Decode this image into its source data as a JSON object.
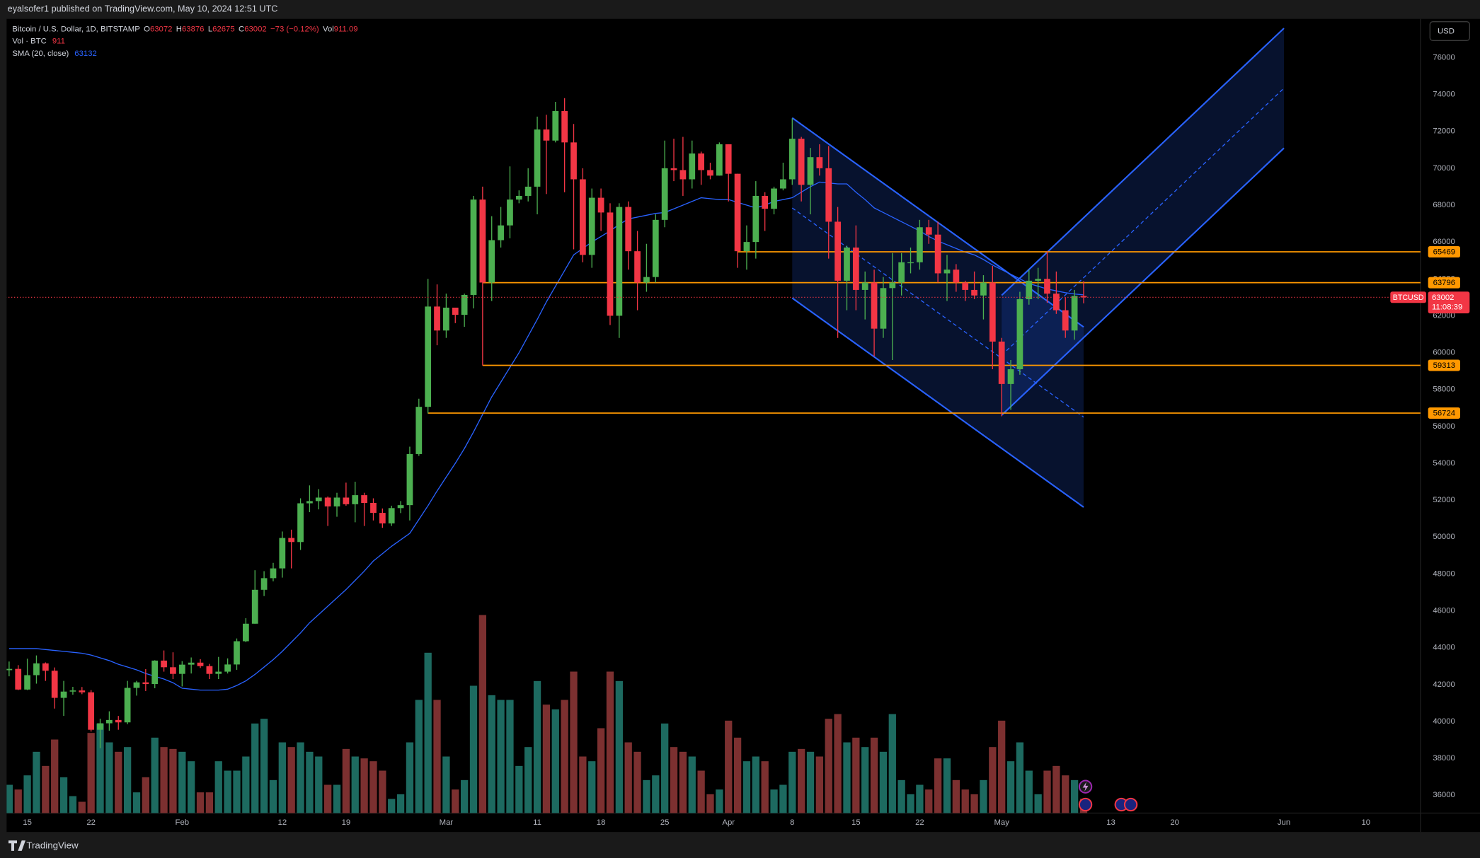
{
  "header": {
    "publisher": "eyalsofer1 published on TradingView.com, May 10, 2024 12:51 UTC",
    "brand": "TradingView",
    "currency": "USD"
  },
  "chart_data": {
    "type": "candlestick",
    "title": "Bitcoin / U.S. Dollar, 1D, BITSTAMP",
    "ohlc_labels": [
      "O",
      "H",
      "L",
      "C",
      "Vol"
    ],
    "change": "−73 (−0.12%)",
    "x": [
      "2024-01-13",
      "2024-01-14",
      "2024-01-15",
      "2024-01-16",
      "2024-01-17",
      "2024-01-18",
      "2024-01-19",
      "2024-01-20",
      "2024-01-21",
      "2024-01-22",
      "2024-01-23",
      "2024-01-24",
      "2024-01-25",
      "2024-01-26",
      "2024-01-27",
      "2024-01-28",
      "2024-01-29",
      "2024-01-30",
      "2024-01-31",
      "2024-02-01",
      "2024-02-02",
      "2024-02-03",
      "2024-02-04",
      "2024-02-05",
      "2024-02-06",
      "2024-02-07",
      "2024-02-08",
      "2024-02-09",
      "2024-02-10",
      "2024-02-11",
      "2024-02-12",
      "2024-02-13",
      "2024-02-14",
      "2024-02-15",
      "2024-02-16",
      "2024-02-17",
      "2024-02-18",
      "2024-02-19",
      "2024-02-20",
      "2024-02-21",
      "2024-02-22",
      "2024-02-23",
      "2024-02-24",
      "2024-02-25",
      "2024-02-26",
      "2024-02-27",
      "2024-02-28",
      "2024-02-29",
      "2024-03-01",
      "2024-03-02",
      "2024-03-03",
      "2024-03-04",
      "2024-03-05",
      "2024-03-06",
      "2024-03-07",
      "2024-03-08",
      "2024-03-09",
      "2024-03-10",
      "2024-03-11",
      "2024-03-12",
      "2024-03-13",
      "2024-03-14",
      "2024-03-15",
      "2024-03-16",
      "2024-03-17",
      "2024-03-18",
      "2024-03-19",
      "2024-03-20",
      "2024-03-21",
      "2024-03-22",
      "2024-03-23",
      "2024-03-24",
      "2024-03-25",
      "2024-03-26",
      "2024-03-27",
      "2024-03-28",
      "2024-03-29",
      "2024-03-30",
      "2024-03-31",
      "2024-04-01",
      "2024-04-02",
      "2024-04-03",
      "2024-04-04",
      "2024-04-05",
      "2024-04-06",
      "2024-04-07",
      "2024-04-08",
      "2024-04-09",
      "2024-04-10",
      "2024-04-11",
      "2024-04-12",
      "2024-04-13",
      "2024-04-14",
      "2024-04-15",
      "2024-04-16",
      "2024-04-17",
      "2024-04-18",
      "2024-04-19",
      "2024-04-20",
      "2024-04-21",
      "2024-04-22",
      "2024-04-23",
      "2024-04-24",
      "2024-04-25",
      "2024-04-26",
      "2024-04-27",
      "2024-04-28",
      "2024-04-29",
      "2024-04-30",
      "2024-05-01",
      "2024-05-02",
      "2024-05-03",
      "2024-05-04",
      "2024-05-05",
      "2024-05-06",
      "2024-05-07",
      "2024-05-08",
      "2024-05-09",
      "2024-05-10"
    ],
    "open": [
      42780,
      42850,
      41730,
      42510,
      43150,
      42750,
      41280,
      41620,
      41680,
      41580,
      39550,
      39900,
      40080,
      39950,
      41820,
      42120,
      42030,
      43300,
      42940,
      42580,
      43080,
      43190,
      43000,
      42580,
      42700,
      43090,
      44350,
      45300,
      47140,
      47770,
      48300,
      49950,
      49730,
      51830,
      51950,
      52140,
      51660,
      52140,
      51780,
      52270,
      51850,
      51310,
      50740,
      51570,
      51730,
      54500,
      57060,
      62500,
      61200,
      62440,
      62050,
      63130,
      68300,
      63800,
      66100,
      66900,
      68300,
      68500,
      69000,
      72100,
      71500,
      73100,
      71400,
      69400,
      65300,
      68400,
      67600,
      62000,
      67900,
      65500,
      63800,
      64100,
      67200,
      70000,
      69900,
      69400,
      70800,
      69900,
      69600,
      71300,
      69700,
      65500,
      66000,
      68500,
      67800,
      68900,
      69400,
      71600,
      69100,
      70600,
      70000,
      67100,
      63900,
      65700,
      63400,
      63800,
      61300,
      63500,
      63800,
      64900,
      64900,
      66800,
      66400,
      64300,
      64500,
      63800,
      63400,
      63100,
      63800,
      60600,
      58300,
      59100,
      62900,
      63900,
      64000,
      63200,
      62300,
      61200,
      63072
    ],
    "high": [
      43250,
      43050,
      43400,
      43580,
      43200,
      42930,
      42200,
      41880,
      41870,
      41700,
      40150,
      40550,
      40300,
      42200,
      42200,
      42840,
      43320,
      43850,
      43750,
      43270,
      43470,
      43380,
      43120,
      43500,
      43420,
      44500,
      45600,
      48200,
      48150,
      48600,
      50300,
      50400,
      52100,
      52800,
      52600,
      52200,
      52400,
      52950,
      53000,
      52400,
      52100,
      51550,
      51700,
      51950,
      54900,
      57500,
      64000,
      63700,
      63200,
      62400,
      63200,
      68500,
      69000,
      67400,
      67900,
      70100,
      68800,
      70000,
      72800,
      72900,
      73600,
      73800,
      72400,
      70000,
      68900,
      68900,
      68100,
      68100,
      68200,
      66600,
      65900,
      67500,
      71500,
      71600,
      71700,
      71500,
      70900,
      70300,
      71400,
      71300,
      69700,
      66900,
      69300,
      68700,
      69000,
      70300,
      72700,
      71700,
      71100,
      71300,
      71200,
      67900,
      65800,
      66900,
      64400,
      64500,
      64100,
      65400,
      65400,
      65700,
      67200,
      67200,
      67100,
      65300,
      64800,
      63900,
      64400,
      64200,
      64700,
      60800,
      59600,
      63300,
      64500,
      64600,
      65500,
      64400,
      63000,
      63400,
      63876
    ],
    "low": [
      42450,
      41700,
      41700,
      42050,
      42200,
      40700,
      40300,
      41450,
      41480,
      39450,
      38550,
      39500,
      39550,
      39850,
      41400,
      41650,
      41800,
      42700,
      42300,
      41900,
      42600,
      42900,
      42300,
      42300,
      42600,
      42800,
      44300,
      45300,
      46800,
      47600,
      47800,
      48300,
      49300,
      51350,
      51500,
      50600,
      51100,
      51700,
      50800,
      50600,
      50900,
      50500,
      50600,
      51300,
      50900,
      54400,
      56700,
      60400,
      60800,
      61600,
      61400,
      62400,
      59300,
      62800,
      65700,
      66200,
      68100,
      68200,
      67500,
      68600,
      71400,
      68700,
      65600,
      64900,
      64600,
      66600,
      61500,
      60800,
      64500,
      62300,
      63300,
      63800,
      66800,
      69300,
      68500,
      68900,
      69100,
      69400,
      69600,
      68200,
      64600,
      64500,
      65100,
      66600,
      67500,
      68800,
      69100,
      68200,
      67500,
      69600,
      65100,
      60800,
      62300,
      62300,
      61800,
      59800,
      60800,
      59600,
      63100,
      64300,
      64500,
      65900,
      63800,
      62800,
      63300,
      62800,
      62900,
      61800,
      59100,
      56550,
      56900,
      58800,
      62600,
      62900,
      62700,
      62100,
      60800,
      60700,
      62675
    ],
    "close": [
      42850,
      41730,
      42510,
      43150,
      42750,
      41280,
      41620,
      41680,
      41580,
      39550,
      39900,
      40080,
      39950,
      41820,
      42120,
      42030,
      43300,
      42940,
      42580,
      43080,
      43190,
      43000,
      42580,
      42700,
      43090,
      44350,
      45300,
      47140,
      47770,
      48300,
      49950,
      49730,
      51830,
      51950,
      52140,
      51660,
      52140,
      51780,
      52270,
      51850,
      51310,
      50740,
      51570,
      51730,
      54500,
      57060,
      62500,
      61200,
      62440,
      62050,
      63130,
      68300,
      63800,
      66100,
      66900,
      68300,
      68500,
      69000,
      72100,
      71500,
      73100,
      71400,
      69400,
      65300,
      68400,
      67600,
      62000,
      67900,
      65500,
      63800,
      64100,
      67200,
      70000,
      69900,
      69400,
      70800,
      69900,
      69600,
      71300,
      69700,
      65500,
      66000,
      68500,
      67800,
      68900,
      69400,
      71600,
      69100,
      70600,
      70000,
      67100,
      63900,
      65700,
      63400,
      63800,
      61300,
      63500,
      63800,
      64900,
      64900,
      66800,
      66400,
      64300,
      64500,
      63800,
      63400,
      63100,
      63800,
      60600,
      58300,
      59100,
      62900,
      63900,
      64000,
      63200,
      62300,
      61200,
      63075,
      63002
    ],
    "up_color": "#4caf50",
    "down_color": "#f23645",
    "xlim": [
      "2024-01-12",
      "2024-06-16"
    ],
    "xticks": [
      {
        "value": "2024-01-15",
        "label": "15"
      },
      {
        "value": "2024-01-22",
        "label": "22"
      },
      {
        "value": "2024-02-01",
        "label": "Feb"
      },
      {
        "value": "2024-02-12",
        "label": "12"
      },
      {
        "value": "2024-02-19",
        "label": "19"
      },
      {
        "value": "2024-03-01",
        "label": "Mar"
      },
      {
        "value": "2024-03-11",
        "label": "11"
      },
      {
        "value": "2024-03-18",
        "label": "18"
      },
      {
        "value": "2024-03-25",
        "label": "25"
      },
      {
        "value": "2024-04-01",
        "label": "Apr"
      },
      {
        "value": "2024-04-08",
        "label": "8"
      },
      {
        "value": "2024-04-15",
        "label": "15"
      },
      {
        "value": "2024-04-22",
        "label": "22"
      },
      {
        "value": "2024-05-01",
        "label": "May"
      },
      {
        "value": "2024-05-13",
        "label": "13"
      },
      {
        "value": "2024-05-20",
        "label": "20"
      },
      {
        "value": "2024-06-01",
        "label": "Jun"
      },
      {
        "value": "2024-06-10",
        "label": "10"
      }
    ],
    "ylim": [
      35030,
      78100
    ],
    "yticks": [
      36000,
      38000,
      40000,
      42000,
      44000,
      46000,
      48000,
      50000,
      52000,
      54000,
      56000,
      58000,
      60000,
      62000,
      64000,
      66000,
      68000,
      70000,
      72000,
      74000,
      76000
    ],
    "grid": false,
    "volume": {
      "title": "Vol · BTC",
      "value_label": "911",
      "up_color": "#1d6a60",
      "down_color": "#7c3030",
      "values": [
        1800,
        1500,
        2400,
        3900,
        3000,
        4680,
        2280,
        1080,
        720,
        5100,
        5700,
        4500,
        3900,
        4200,
        1320,
        2280,
        4800,
        4200,
        4080,
        3900,
        3300,
        1320,
        1320,
        3300,
        2700,
        2700,
        3600,
        5700,
        6000,
        2100,
        4500,
        4200,
        4500,
        3900,
        3600,
        1800,
        1800,
        4080,
        3600,
        3480,
        3300,
        2700,
        900,
        1200,
        4500,
        7200,
        10200,
        7200,
        3600,
        1500,
        2100,
        8100,
        12600,
        7500,
        7200,
        7200,
        3000,
        4200,
        8400,
        6900,
        6600,
        7200,
        9000,
        3600,
        3300,
        5400,
        9000,
        8400,
        4500,
        3900,
        2100,
        2400,
        5700,
        4200,
        3900,
        3600,
        2700,
        1200,
        1500,
        5880,
        4800,
        3300,
        3600,
        3300,
        1500,
        1800,
        3900,
        4080,
        3900,
        3600,
        6000,
        6300,
        4500,
        4800,
        4200,
        4800,
        3900,
        6300,
        2100,
        1200,
        1800,
        1500,
        3480,
        3480,
        2100,
        1500,
        1200,
        2100,
        4200,
        5880,
        3300,
        4500,
        2700,
        1200,
        2700,
        3000,
        2400,
        2100,
        911.09
      ]
    },
    "sma": {
      "title": "SMA (20, close)",
      "color": "#2962ff",
      "values": [
        43950,
        43950,
        43950,
        43950,
        43900,
        43850,
        43800,
        43750,
        43700,
        43600,
        43450,
        43300,
        43100,
        42950,
        42800,
        42600,
        42450,
        42300,
        42100,
        41800,
        41750,
        41700,
        41700,
        41700,
        41750,
        41950,
        42200,
        42550,
        42950,
        43350,
        43800,
        44300,
        44800,
        45350,
        45800,
        46250,
        46700,
        47150,
        47650,
        48150,
        48700,
        49100,
        49500,
        49850,
        50200,
        50950,
        51700,
        52500,
        53250,
        54000,
        54800,
        55700,
        56650,
        57600,
        58400,
        59200,
        60000,
        60900,
        61800,
        62750,
        63600,
        64450,
        65300,
        65650,
        66000,
        66300,
        66600,
        66950,
        67250,
        67350,
        67450,
        67550,
        67600,
        67800,
        68000,
        68200,
        68400,
        68350,
        68300,
        68300,
        68150,
        68000,
        67850,
        68000,
        68200,
        68300,
        68400,
        68700,
        69000,
        69250,
        69200,
        69150,
        69150,
        68700,
        68300,
        67850,
        67600,
        67350,
        67100,
        66850,
        66600,
        66300,
        66050,
        65850,
        65650,
        65450,
        65300,
        65050,
        64750,
        64500,
        64250,
        64000,
        63750,
        63600,
        63450,
        63350,
        63250,
        63180,
        63132
      ]
    },
    "levels": {
      "color": "#ff9800",
      "items": [
        {
          "value": 65469,
          "from": "2024-04-02"
        },
        {
          "value": 63796,
          "from": "2024-03-05"
        },
        {
          "value": 59313,
          "from": "2024-03-05"
        },
        {
          "value": 56724,
          "from": "2024-02-28"
        }
      ]
    },
    "channels": {
      "color": "#2962ff",
      "items": [
        {
          "points": [
            [
              "2024-04-08",
              72730
            ],
            [
              "2024-05-10",
              61390
            ],
            [
              "2024-04-08",
              62960
            ]
          ]
        },
        {
          "points": [
            [
              "2024-05-01",
              56610
            ],
            [
              "2024-06-01",
              71090
            ],
            [
              "2024-05-01",
              63110
            ]
          ]
        }
      ]
    },
    "last_price": {
      "symbol": "BTCUSD",
      "value": 63002,
      "countdown": "11:08:39",
      "color": "#f23645"
    }
  }
}
